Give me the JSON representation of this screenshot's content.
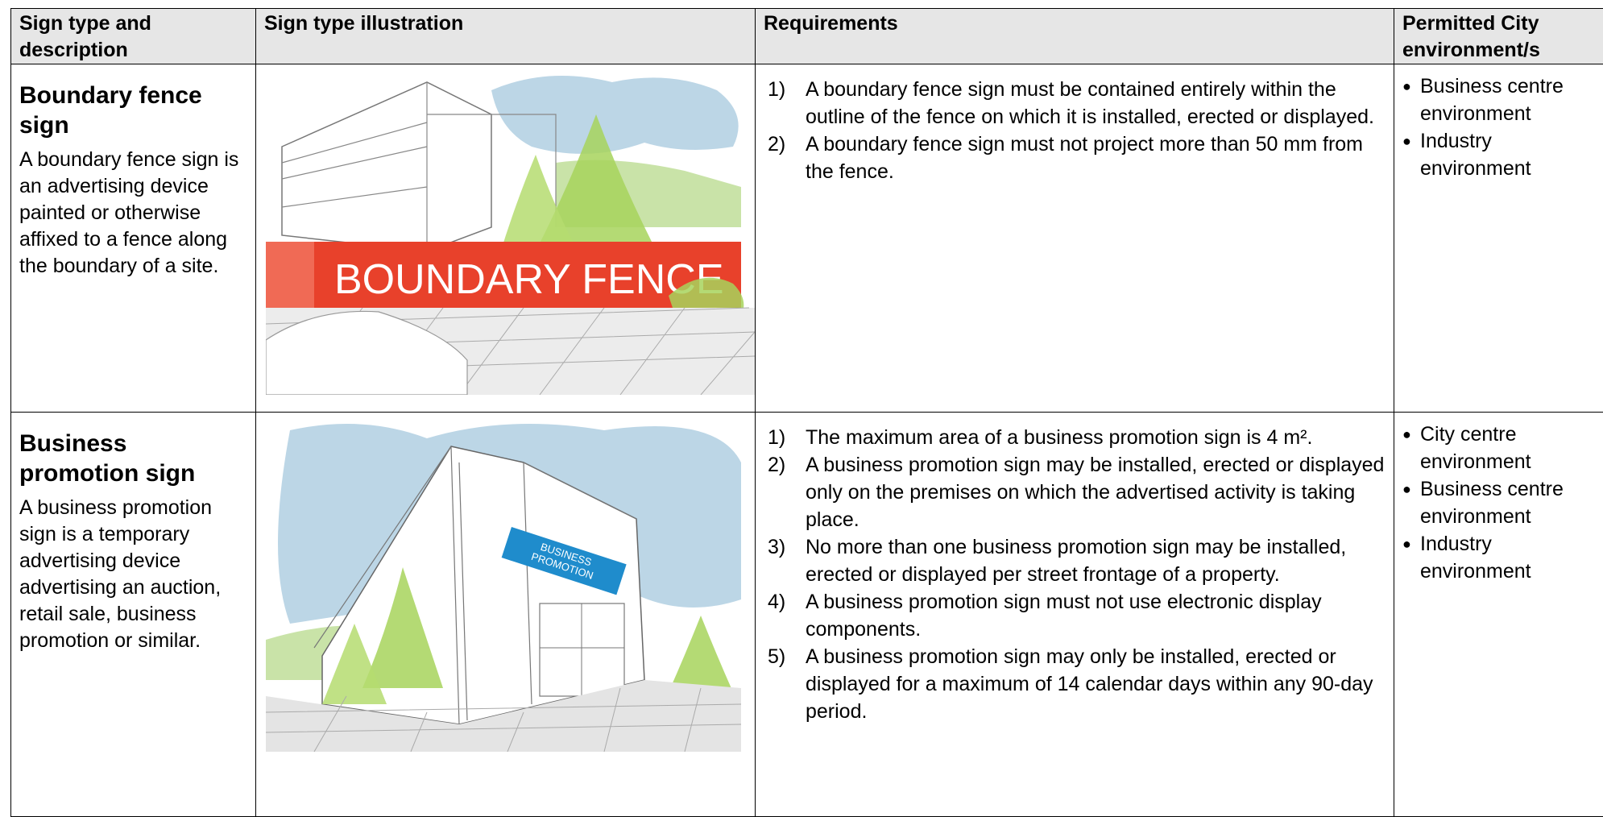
{
  "table": {
    "headers": [
      "Sign type and description",
      "Sign type illustration",
      "Requirements",
      "Permitted City environment/s"
    ],
    "rows": [
      {
        "title": "Boundary fence sign",
        "description": "A boundary fence sign is an advertising device painted or otherwise affixed to a fence along the boundary of a site.",
        "illustration_text": [
          "BOUNDARY FENCE"
        ],
        "requirements": [
          {
            "number": "1)",
            "text": "A boundary fence sign must be contained entirely within the outline of the fence on which it is installed, erected or displayed."
          },
          {
            "number": "2)",
            "text": "A boundary fence sign must not project more than 50 mm from the fence."
          }
        ],
        "environments": [
          "Business centre environment",
          "Industry environment"
        ]
      },
      {
        "title": "Business promotion sign",
        "description": "A business promotion sign is a temporary advertising device advertising an auction, retail sale, business promotion or similar.",
        "illustration_text": [
          "BUSINESS",
          "PROMOTION"
        ],
        "requirements": [
          {
            "number": "1)",
            "text": "The maximum area of a business promotion sign is 4 m²."
          },
          {
            "number": "2)",
            "text": "A business promotion sign may be installed, erected or displayed only on the premises on which the advertised activity is taking place."
          },
          {
            "number": "3)",
            "text": "No more than one business promotion sign may be installed, erected or displayed per street frontage of a property."
          },
          {
            "number": "4)",
            "text": "A business promotion sign must not use electronic display components."
          },
          {
            "number": "5)",
            "text": "A business promotion sign may only be installed, erected or displayed for a maximum of 14 calendar days within any 90-day period."
          }
        ],
        "environments": [
          "City centre environment",
          "Business centre environment",
          "Industry environment"
        ]
      }
    ]
  }
}
